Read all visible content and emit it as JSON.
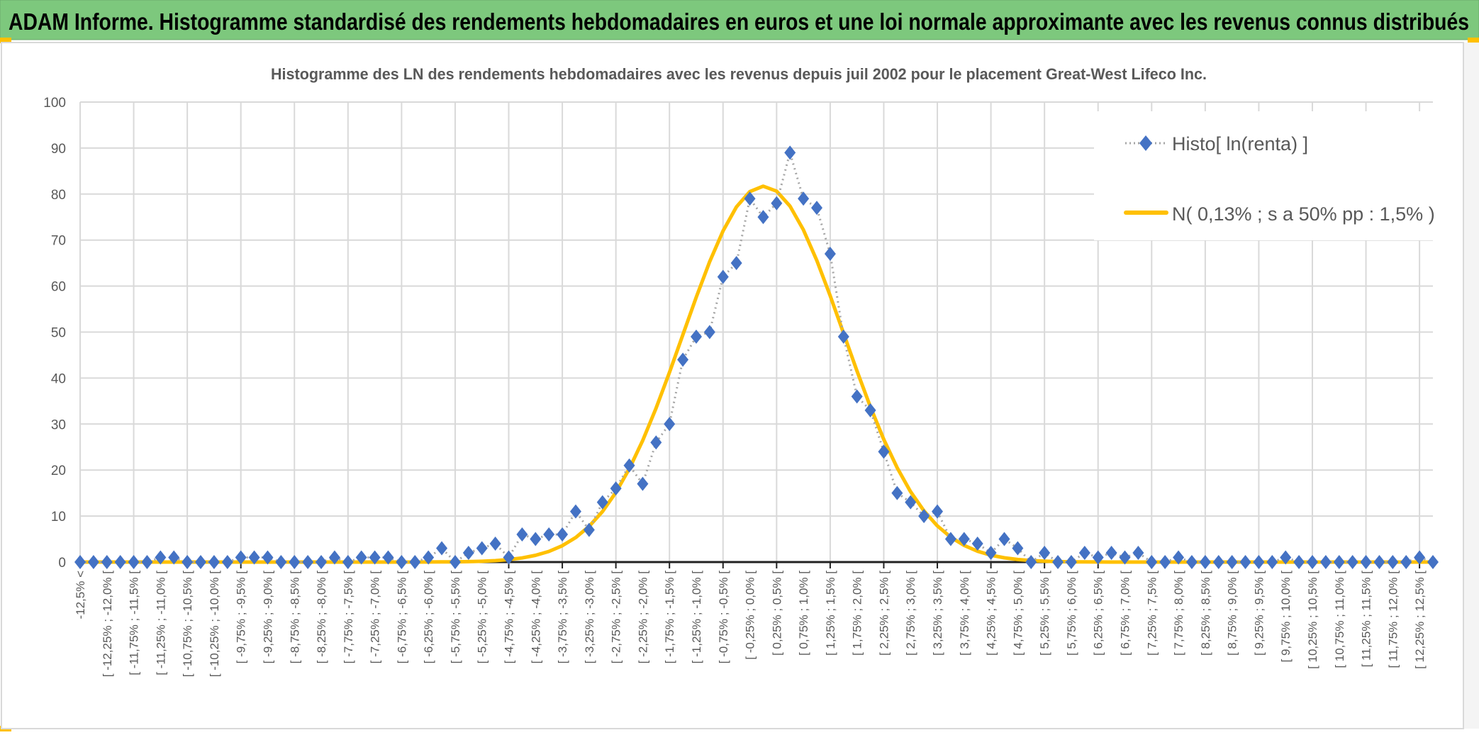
{
  "header": {
    "title": "ADAM Informe. Histogramme standardisé des rendements hebdomadaires en euros et une loi normale approximante avec les revenus connus distribués"
  },
  "colors": {
    "header_bg": "#7dc87d",
    "histogram_marker": "#4472c4",
    "histogram_line": "#a5a5a5",
    "normal_curve": "#ffc000",
    "gridline": "#d9d9d9",
    "text": "#595959"
  },
  "chart_data": {
    "type": "line",
    "title": "Histogramme des LN des rendements hebdomadaires avec les revenus depuis juil 2002 pour le placement Great-West Lifeco Inc.",
    "xlabel": "",
    "ylabel": "",
    "ylim": [
      0,
      100
    ],
    "y_ticks": [
      "0",
      "10",
      "20",
      "30",
      "40",
      "50",
      "60",
      "70",
      "80",
      "90",
      "100"
    ],
    "grid": true,
    "legend_position": "top-right",
    "x_tick_labels": [
      "-12,5% <",
      "[ -12,25% ; -12,0% [",
      "[ -11,75% ; -11,5% [",
      "[ -11,25% ; -11,0% [",
      "[ -10,75% ; -10,5% [",
      "[ -10,25% ; -10,0% [",
      "[ -9,75% ; -9,5% [",
      "[ -9,25% ; -9,0% [",
      "[ -8,75% ; -8,5% [",
      "[ -8,25% ; -8,0% [",
      "[ -7,75% ; -7,5% [",
      "[ -7,25% ; -7,0% [",
      "[ -6,75% ; -6,5% [",
      "[ -6,25% ; -6,0% [",
      "[ -5,75% ; -5,5% [",
      "[ -5,25% ; -5,0% [",
      "[ -4,75% ; -4,5% [",
      "[ -4,25% ; -4,0% [",
      "[ -3,75% ; -3,5% [",
      "[ -3,25% ; -3,0% [",
      "[ -2,75% ; -2,5% [",
      "[ -2,25% ; -2,0% [",
      "[ -1,75% ; -1,5% [",
      "[ -1,25% ; -1,0% [",
      "[ -0,75% ; -0,5% [",
      "[ -0,25% ; 0,0% [",
      "[ 0,25% ; 0,5% [",
      "[ 0,75% ; 1,0% [",
      "[ 1,25% ; 1,5% [",
      "[ 1,75% ; 2,0% [",
      "[ 2,25% ; 2,5% [",
      "[ 2,75% ; 3,0% [",
      "[ 3,25% ; 3,5% [",
      "[ 3,75% ; 4,0% [",
      "[ 4,25% ; 4,5% [",
      "[ 4,75% ; 5,0% [",
      "[ 5,25% ; 5,5% [",
      "[ 5,75% ; 6,0% [",
      "[ 6,25% ; 6,5% [",
      "[ 6,75% ; 7,0% [",
      "[ 7,25% ; 7,5% [",
      "[ 7,75% ; 8,0% [",
      "[ 8,25% ; 8,5% [",
      "[ 8,75% ; 9,0% [",
      "[ 9,25% ; 9,5% [",
      "[ 9,75% ; 10,0% [",
      "[ 10,25% ; 10,5% [",
      "[ 10,75% ; 11,0% [",
      "[ 11,25% ; 11,5% [",
      "[ 11,75% ; 12,0% [",
      "[ 12,25% ; 12,5% ["
    ],
    "bin_width_pct": 0.25,
    "x_range_pct": [
      -12.5,
      12.5
    ],
    "series": [
      {
        "name": "Histo[ ln(renta) ]",
        "style": "dotted-line-diamond-markers",
        "values": [
          0,
          0,
          0,
          0,
          0,
          0,
          1,
          1,
          0,
          0,
          0,
          0,
          1,
          1,
          1,
          0,
          0,
          0,
          0,
          1,
          0,
          1,
          1,
          1,
          0,
          0,
          1,
          3,
          0,
          2,
          3,
          4,
          1,
          6,
          5,
          6,
          6,
          11,
          7,
          13,
          16,
          21,
          17,
          26,
          30,
          44,
          49,
          50,
          62,
          65,
          79,
          75,
          78,
          89,
          79,
          77,
          67,
          49,
          36,
          33,
          24,
          15,
          13,
          10,
          11,
          5,
          5,
          4,
          2,
          5,
          3,
          0,
          2,
          0,
          0,
          2,
          1,
          2,
          1,
          2,
          0,
          0,
          1,
          0,
          0,
          0,
          0,
          0,
          0,
          0,
          1,
          0,
          0,
          0,
          0,
          0,
          0,
          0,
          0,
          0,
          1,
          0
        ]
      },
      {
        "name": "N( 0,13% ; s a 50% pp : 1,5% )",
        "style": "solid-line",
        "distribution": "normal",
        "mean_pct": 0.13,
        "sd_pct": 1.5
      }
    ]
  }
}
